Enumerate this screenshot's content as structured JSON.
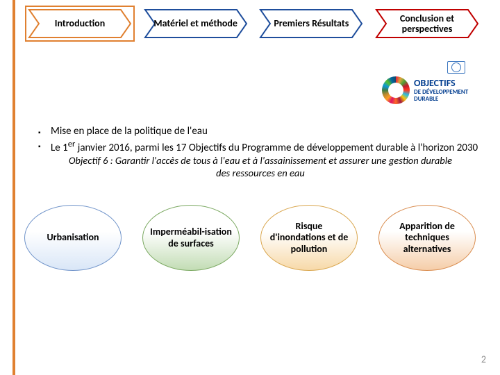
{
  "nav": [
    {
      "label": "Introduction",
      "stroke": "#e08030",
      "active": true
    },
    {
      "label": "Matériel et méthode",
      "stroke": "#1f4e9c",
      "active": false
    },
    {
      "label": "Premiers Résultats",
      "stroke": "#1f4e9c",
      "active": false
    },
    {
      "label": "Conclusion et perspectives",
      "stroke": "#c00000",
      "active": false
    }
  ],
  "logo": {
    "line1": "OBJECTIFS",
    "line2": "DE DÉVELOPPEMENT",
    "line3": "DURABLE"
  },
  "bullets": [
    "Mise en place de la politique de l'eau",
    "Le 1er janvier 2016, parmi les 17 Objectifs du Programme de développement durable à l'horizon 2030"
  ],
  "objective": "Objectif 6 : Garantir l'accès de tous à l'eau et à l'assainissement et  assurer une gestion durable des ressources en eau",
  "bubbles": [
    {
      "label": "Urbanisation",
      "fill_top": "#ffffff",
      "fill_bot": "#d9e6f7",
      "border": "#6f93c9"
    },
    {
      "label": "Imperméabil-isation de surfaces",
      "fill_top": "#ffffff",
      "fill_bot": "#c2dcb4",
      "border": "#7aa860"
    },
    {
      "label": "Risque d'inondations et de pollution",
      "fill_top": "#ffffff",
      "fill_bot": "#f7d9a8",
      "border": "#d9a64e"
    },
    {
      "label": "Apparition de techniques alternatives",
      "fill_top": "#ffffff",
      "fill_bot": "#f5cda8",
      "border": "#d98c4e"
    }
  ],
  "page_number": "2"
}
